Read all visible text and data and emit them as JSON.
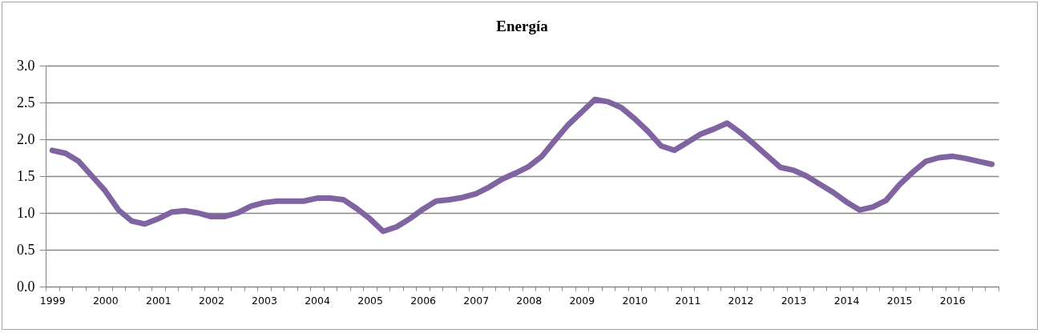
{
  "chart_data": {
    "type": "line",
    "title": "Energía",
    "categories": [
      "1999",
      null,
      null,
      null,
      "2000",
      null,
      null,
      null,
      "2001",
      null,
      null,
      null,
      "2002",
      null,
      null,
      null,
      "2003",
      null,
      null,
      null,
      "2004",
      null,
      null,
      null,
      "2005",
      null,
      null,
      null,
      "2006",
      null,
      null,
      null,
      "2007",
      null,
      null,
      null,
      "2008",
      null,
      null,
      null,
      "2009",
      null,
      null,
      null,
      "2010",
      null,
      null,
      null,
      "2011",
      null,
      null,
      null,
      "2012",
      null,
      null,
      null,
      "2013",
      null,
      null,
      null,
      "2014",
      null,
      null,
      null,
      "2015",
      null,
      null,
      null,
      "2016",
      null,
      null,
      null
    ],
    "series": [
      {
        "color": "#8064a2",
        "values": [
          1.85,
          1.81,
          1.7,
          1.5,
          1.3,
          1.04,
          0.89,
          0.85,
          0.92,
          1.01,
          1.03,
          1.0,
          0.95,
          0.95,
          1.0,
          1.09,
          1.14,
          1.16,
          1.16,
          1.16,
          1.2,
          1.2,
          1.18,
          1.06,
          0.92,
          0.75,
          0.81,
          0.92,
          1.05,
          1.16,
          1.18,
          1.21,
          1.26,
          1.35,
          1.46,
          1.54,
          1.63,
          1.77,
          1.99,
          2.2,
          2.37,
          2.54,
          2.51,
          2.43,
          2.28,
          2.11,
          1.91,
          1.85,
          1.96,
          2.07,
          2.14,
          2.22,
          2.09,
          1.94,
          1.78,
          1.62,
          1.58,
          1.5,
          1.39,
          1.28,
          1.15,
          1.04,
          1.08,
          1.17,
          1.38,
          1.55,
          1.7,
          1.75,
          1.77,
          1.74,
          1.7,
          1.66
        ]
      }
    ],
    "ylim": [
      0,
      3
    ],
    "yticks": [
      {
        "value": 0,
        "label": "0.0"
      },
      {
        "value": 0.5,
        "label": "0.5"
      },
      {
        "value": 1,
        "label": "1.0"
      },
      {
        "value": 1.5,
        "label": "1.5"
      },
      {
        "value": 2,
        "label": "2.0"
      },
      {
        "value": 2.5,
        "label": "2.5"
      },
      {
        "value": 3,
        "label": "3.0"
      }
    ],
    "grid": "y"
  }
}
